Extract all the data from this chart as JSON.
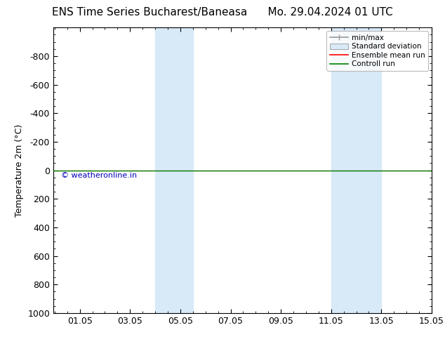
{
  "title_left": "ENS Time Series Bucharest/Baneasa",
  "title_right": "Mo. 29.04.2024 01 UTC",
  "ylabel": "Temperature 2m (°C)",
  "watermark": "© weatheronline.in",
  "xlim": [
    0.0,
    15.05
  ],
  "ylim": [
    1000,
    -1000
  ],
  "xticks": [
    1.05,
    3.05,
    5.05,
    7.05,
    9.05,
    11.05,
    13.05,
    15.05
  ],
  "yticks": [
    -800,
    -600,
    -400,
    -200,
    0,
    200,
    400,
    600,
    800,
    1000
  ],
  "ytick_labels": [
    "-800",
    "-600",
    "-400",
    "-200",
    "0",
    "200",
    "400",
    "600",
    "800",
    "1000"
  ],
  "shaded_regions": [
    [
      4.05,
      4.55
    ],
    [
      4.55,
      5.55
    ],
    [
      11.05,
      11.55
    ],
    [
      11.55,
      13.05
    ]
  ],
  "shaded_colors": [
    "#cce0f0",
    "#ddeaf8",
    "#cce0f0",
    "#ddeaf8"
  ],
  "shaded_color": "#d8eaf8",
  "green_line_y": 0,
  "red_line_y": 0,
  "background_color": "#ffffff",
  "legend_entries": [
    "min/max",
    "Standard deviation",
    "Ensemble mean run",
    "Controll run"
  ],
  "legend_colors": [
    "#aaaaaa",
    "#ccddee",
    "#ff0000",
    "#008000"
  ],
  "title_fontsize": 11,
  "axis_fontsize": 9,
  "tick_fontsize": 9,
  "watermark_color": "#0000bb",
  "watermark_fontsize": 8
}
